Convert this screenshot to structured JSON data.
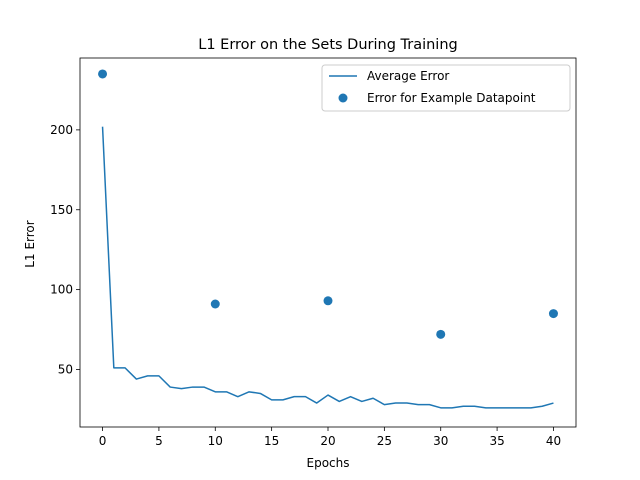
{
  "chart_data": {
    "type": "line",
    "title": "L1 Error on the Sets During Training",
    "xlabel": "Epochs",
    "ylabel": "L1 Error",
    "xlim": [
      -2,
      42
    ],
    "ylim": [
      14,
      245
    ],
    "xticks": [
      0,
      5,
      10,
      15,
      20,
      25,
      30,
      35,
      40
    ],
    "yticks": [
      50,
      100,
      150,
      200
    ],
    "grid": false,
    "legend_position": "top-right",
    "series": [
      {
        "name": "Average Error",
        "kind": "line",
        "color": "#1f77b4",
        "x": [
          0,
          1,
          2,
          3,
          4,
          5,
          6,
          7,
          8,
          9,
          10,
          11,
          12,
          13,
          14,
          15,
          16,
          17,
          18,
          19,
          20,
          21,
          22,
          23,
          24,
          25,
          26,
          27,
          28,
          29,
          30,
          31,
          32,
          33,
          34,
          35,
          36,
          37,
          38,
          39,
          40
        ],
        "y": [
          202,
          51,
          51,
          44,
          46,
          46,
          39,
          38,
          39,
          39,
          36,
          36,
          33,
          36,
          35,
          31,
          31,
          33,
          33,
          29,
          34,
          30,
          33,
          30,
          32,
          28,
          29,
          29,
          28,
          28,
          26,
          26,
          27,
          27,
          26,
          26,
          26,
          26,
          26,
          27,
          29
        ]
      },
      {
        "name": "Error for Example Datapoint",
        "kind": "scatter",
        "color": "#1f77b4",
        "x": [
          0,
          10,
          20,
          30,
          40
        ],
        "y": [
          235,
          91,
          93,
          72,
          85
        ]
      }
    ]
  }
}
